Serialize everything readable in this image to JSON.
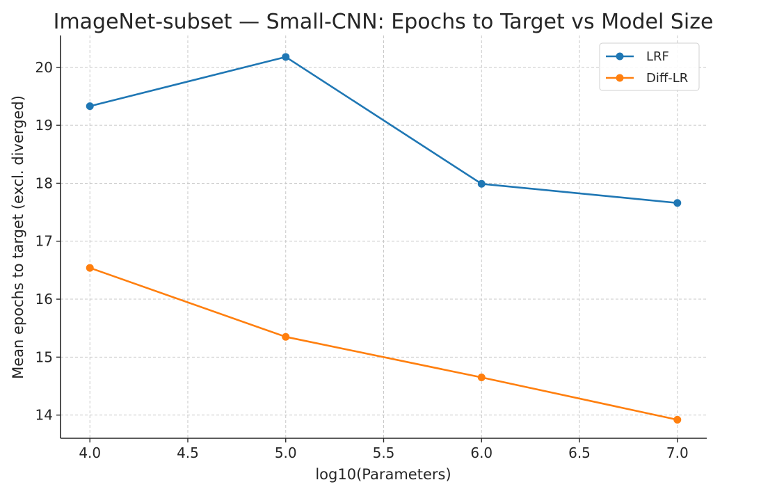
{
  "chart_data": {
    "type": "line",
    "title": "ImageNet-subset — Small-CNN: Epochs to Target vs Model Size",
    "xlabel": "log10(Parameters)",
    "ylabel": "Mean epochs to target (excl. diverged)",
    "x": [
      4.0,
      5.0,
      6.0,
      7.0
    ],
    "xlim": [
      3.85,
      7.15
    ],
    "ylim": [
      13.6,
      20.55
    ],
    "xticks": [
      4.0,
      4.5,
      5.0,
      5.5,
      6.0,
      6.5,
      7.0
    ],
    "xtick_labels": [
      "4.0",
      "4.5",
      "5.0",
      "5.5",
      "6.0",
      "6.5",
      "7.0"
    ],
    "yticks": [
      14,
      15,
      16,
      17,
      18,
      19,
      20
    ],
    "ytick_labels": [
      "14",
      "15",
      "16",
      "17",
      "18",
      "19",
      "20"
    ],
    "grid": true,
    "legend_position": "top-right",
    "series": [
      {
        "name": "LRF",
        "color": "#1f77b4",
        "values": [
          19.33,
          20.18,
          17.99,
          17.66
        ]
      },
      {
        "name": "Diff-LR",
        "color": "#ff7f0e",
        "values": [
          16.54,
          15.35,
          14.65,
          13.92
        ]
      }
    ]
  }
}
